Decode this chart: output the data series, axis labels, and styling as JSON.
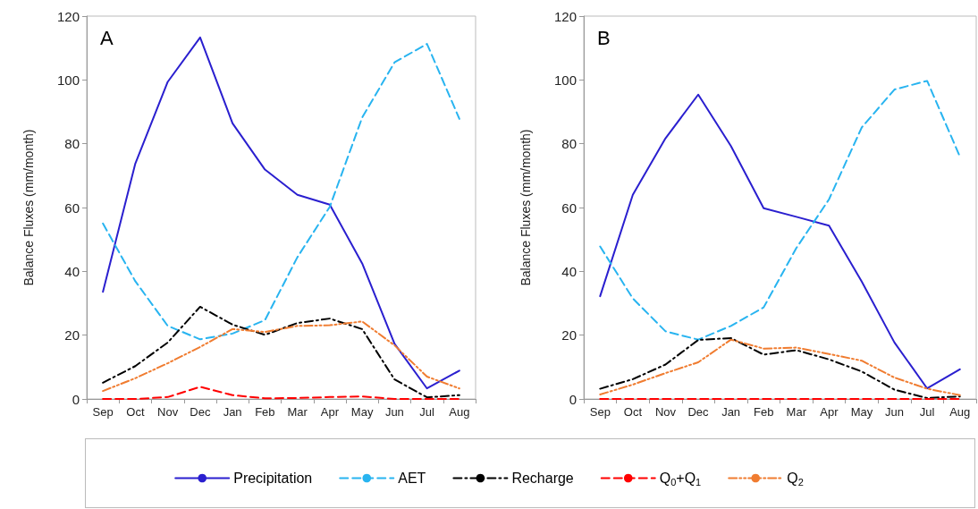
{
  "chart_data": [
    {
      "type": "line",
      "title": "A",
      "ylabel": "Balance Fluxes (mm/month)",
      "categories": [
        "Sep",
        "Oct",
        "Nov",
        "Dec",
        "Jan",
        "Feb",
        "Mar",
        "Apr",
        "May",
        "Jun",
        "Jul",
        "Aug"
      ],
      "ylim": [
        0,
        120
      ],
      "yticks": [
        0,
        20,
        40,
        60,
        80,
        100,
        120
      ],
      "grid": false,
      "legend": "bottom",
      "marker": "none",
      "series": [
        {
          "name": "Precipitation",
          "color": "#2a1fcf",
          "line_style": "solid",
          "values": [
            33.6,
            73.8,
            99.4,
            113.3,
            86.4,
            71.9,
            64,
            60.9,
            42.5,
            17.3,
            3.3,
            8.9
          ]
        },
        {
          "name": "AET",
          "color": "#28b4f0",
          "line_style": "dashed",
          "values": [
            55,
            36.9,
            22.9,
            18.7,
            20.5,
            24.7,
            44.4,
            60.2,
            88.2,
            105.5,
            111.3,
            87.8
          ]
        },
        {
          "name": "Recharge",
          "color": "#000000",
          "line_style": "dashdot",
          "values": [
            5.1,
            10.3,
            17.7,
            28.9,
            23.3,
            20.1,
            23.8,
            25.2,
            21.9,
            6.1,
            0.5,
            1.2
          ]
        },
        {
          "name": "Q$_{0}$+Q$_{1}$",
          "color": "#ff0000",
          "line_style": "dashed",
          "values": [
            0,
            0,
            0.6,
            3.8,
            1.2,
            0.2,
            0.3,
            0.6,
            0.8,
            0,
            0,
            0
          ]
        },
        {
          "name": "Q$_{2}$",
          "color": "#f07c30",
          "line_style": "dashdotdot",
          "values": [
            2.5,
            6.5,
            11.2,
            16.3,
            21.9,
            21,
            22.9,
            23.1,
            24.3,
            16.8,
            7,
            3.3
          ]
        }
      ]
    },
    {
      "type": "line",
      "title": "B",
      "ylabel": "Balance Fluxes (mm/month)",
      "categories": [
        "Sep",
        "Oct",
        "Nov",
        "Dec",
        "Jan",
        "Feb",
        "Mar",
        "Apr",
        "May",
        "Jun",
        "Jul",
        "Aug"
      ],
      "ylim": [
        0,
        120
      ],
      "yticks": [
        0,
        20,
        40,
        60,
        80,
        100,
        120
      ],
      "grid": false,
      "legend": false,
      "marker": "none",
      "series": [
        {
          "color": "#2a1fcf",
          "line_style": "solid",
          "values": [
            32.2,
            64,
            81.7,
            95.4,
            79.3,
            59.8,
            57.1,
            54.3,
            36.8,
            17.7,
            3.3,
            9.3
          ]
        },
        {
          "color": "#28b4f0",
          "line_style": "dashed",
          "values": [
            47.8,
            31.5,
            21.2,
            18.6,
            22.9,
            28.7,
            47.3,
            62.6,
            85.1,
            97,
            99.7,
            76
          ]
        },
        {
          "color": "#000000",
          "line_style": "dashdot",
          "values": [
            3.2,
            6.2,
            10.8,
            18.5,
            19.1,
            13.9,
            15.3,
            12.4,
            8.6,
            2.9,
            0.3,
            0.8
          ]
        },
        {
          "color": "#ff0000",
          "line_style": "dashed",
          "values": [
            0,
            0,
            0,
            0,
            0,
            0,
            0,
            0,
            0,
            0,
            0,
            0
          ]
        },
        {
          "color": "#f07c30",
          "line_style": "dashdotdot",
          "values": [
            1.4,
            4.5,
            8.1,
            11.5,
            18.6,
            15.8,
            16.1,
            14.1,
            12,
            6.7,
            3.2,
            1.2
          ]
        }
      ]
    }
  ]
}
